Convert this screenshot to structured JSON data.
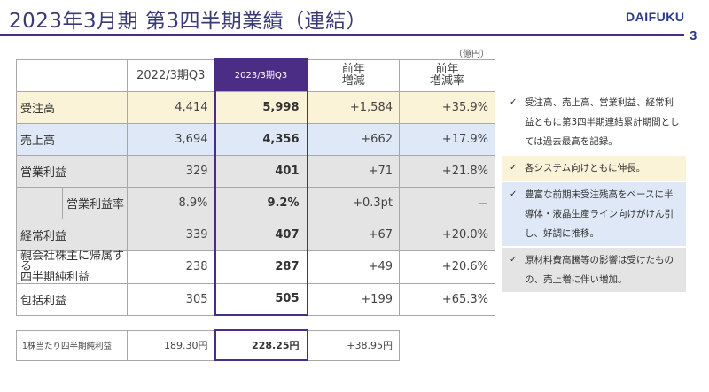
{
  "header": {
    "title": "2023年3月期  第3四半期業績（連結）",
    "logo": "DAIFUKU",
    "page_number": "3",
    "unit": "（億円）"
  },
  "table": {
    "columns": [
      "2022/3期Q3",
      "2023/3期Q3",
      "前年\n増減",
      "前年\n増減率"
    ],
    "rows": {
      "orders": {
        "label": "受注高",
        "prev": "4,414",
        "curr": "5,998",
        "diff": "+1,584",
        "rate": "+35.9%"
      },
      "sales": {
        "label": "売上高",
        "prev": "3,694",
        "curr": "4,356",
        "diff": "+662",
        "rate": "+17.9%"
      },
      "op_income": {
        "label": "営業利益",
        "prev": "329",
        "curr": "401",
        "diff": "+71",
        "rate": "+21.8%"
      },
      "op_margin": {
        "label": "営業利益率",
        "prev": "8.9%",
        "curr": "9.2%",
        "diff": "+0.3pt",
        "rate": "－"
      },
      "ordinary": {
        "label": "経常利益",
        "prev": "339",
        "curr": "407",
        "diff": "+67",
        "rate": "+20.0%"
      },
      "net_income": {
        "label": "親会社株主に帰属する\n四半期純利益",
        "prev": "238",
        "curr": "287",
        "diff": "+49",
        "rate": "+20.6%"
      },
      "comprehensive": {
        "label": "包括利益",
        "prev": "305",
        "curr": "505",
        "diff": "+199",
        "rate": "+65.3%"
      }
    },
    "eps": {
      "label": "1株当たり四半期純利益",
      "prev": "189.30円",
      "curr": "228.25円",
      "diff": "+38.95円"
    }
  },
  "notes": [
    {
      "text": "受注高、売上高、営業利益、経常利益ともに第3四半期連結累計期間としては過去最高を記録。"
    },
    {
      "text": "各システム向けともに伸長。"
    },
    {
      "text": "豊富な前期末受注残高をベースに半導体・液晶生産ライン向けがけん引し、好調に推移。"
    },
    {
      "text": "原材料費高騰等の影響は受けたものの、売上増に伴い増加。"
    }
  ],
  "colors": {
    "accent": "#4b2d85",
    "orders_bg": "#fbf3d8",
    "sales_bg": "#dfe8f6",
    "profit_bg": "#e4e4e4"
  },
  "icons": {
    "check": "check-icon"
  }
}
